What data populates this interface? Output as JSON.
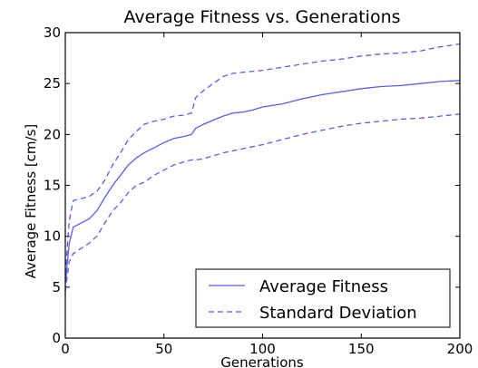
{
  "chart_data": {
    "type": "line",
    "title": "Average Fitness vs. Generations",
    "xlabel": "Generations",
    "ylabel": "Average Fitness [cm/s]",
    "xlim": [
      0,
      200
    ],
    "ylim": [
      0,
      30
    ],
    "xticks": [
      0,
      50,
      100,
      150,
      200
    ],
    "yticks": [
      0,
      5,
      10,
      15,
      20,
      25,
      30
    ],
    "grid": false,
    "legend_position": "bottom-right",
    "series": [
      {
        "name": "Average Fitness",
        "style": "solid",
        "color": "#5b5bef",
        "x": [
          0,
          2,
          4,
          8,
          12,
          16,
          20,
          24,
          28,
          32,
          36,
          40,
          45,
          50,
          55,
          60,
          64,
          66,
          70,
          75,
          80,
          85,
          90,
          95,
          100,
          110,
          120,
          130,
          140,
          150,
          160,
          170,
          180,
          190,
          200
        ],
        "y": [
          5.3,
          9.3,
          10.9,
          11.3,
          11.7,
          12.5,
          13.8,
          15.0,
          16.0,
          17.0,
          17.7,
          18.2,
          18.7,
          19.2,
          19.6,
          19.8,
          20.0,
          20.6,
          21.0,
          21.4,
          21.8,
          22.1,
          22.2,
          22.4,
          22.7,
          23.0,
          23.5,
          23.9,
          24.2,
          24.5,
          24.7,
          24.8,
          25.0,
          25.2,
          25.3
        ]
      },
      {
        "name": "Standard Deviation",
        "style": "dashed",
        "color": "#5b5bef",
        "x": [
          0,
          2,
          4,
          8,
          12,
          16,
          20,
          24,
          28,
          32,
          36,
          40,
          45,
          50,
          55,
          60,
          64,
          66,
          70,
          75,
          80,
          85,
          90,
          100,
          110,
          120,
          130,
          140,
          150,
          160,
          170,
          180,
          190,
          200
        ],
        "y": [
          6.3,
          11.5,
          13.5,
          13.7,
          13.9,
          14.4,
          15.5,
          17.0,
          18.2,
          19.5,
          20.3,
          21.0,
          21.3,
          21.5,
          21.8,
          21.9,
          22.1,
          23.6,
          24.3,
          25.0,
          25.7,
          26.0,
          26.1,
          26.3,
          26.6,
          26.9,
          27.2,
          27.4,
          27.7,
          27.9,
          28.0,
          28.2,
          28.6,
          28.9
        ]
      },
      {
        "name": "",
        "style": "dashed",
        "color": "#5b5bef",
        "x": [
          0,
          2,
          4,
          8,
          12,
          16,
          20,
          24,
          28,
          32,
          36,
          40,
          45,
          50,
          55,
          60,
          64,
          66,
          70,
          75,
          80,
          90,
          100,
          110,
          120,
          130,
          140,
          150,
          160,
          170,
          180,
          190,
          200
        ],
        "y": [
          4.6,
          7.5,
          8.3,
          8.8,
          9.3,
          10.0,
          11.3,
          12.5,
          13.3,
          14.3,
          15.0,
          15.3,
          16.0,
          16.5,
          17.0,
          17.3,
          17.5,
          17.5,
          17.6,
          17.9,
          18.2,
          18.6,
          19.0,
          19.5,
          20.0,
          20.4,
          20.8,
          21.1,
          21.3,
          21.5,
          21.6,
          21.8,
          22.0
        ]
      }
    ],
    "legend": [
      "Average Fitness",
      "Standard Deviation"
    ]
  }
}
